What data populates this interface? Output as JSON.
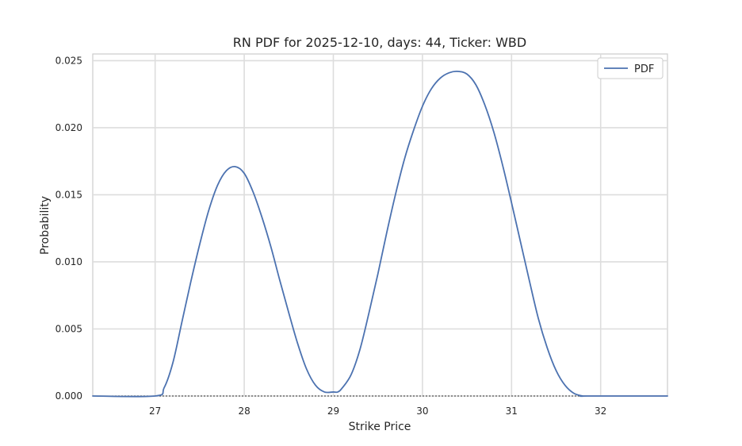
{
  "chart_data": {
    "type": "line",
    "title": "RN PDF for 2025-12-10, days: 44, Ticker: WBD",
    "xlabel": "Strike Price",
    "ylabel": "Probability",
    "xlim": [
      26.3,
      32.75
    ],
    "ylim": [
      0.0,
      0.0255
    ],
    "x_ticks": [
      27,
      28,
      29,
      30,
      31,
      32
    ],
    "x_tick_labels": [
      "27",
      "28",
      "29",
      "30",
      "31",
      "32"
    ],
    "y_ticks": [
      0.0,
      0.005,
      0.01,
      0.015,
      0.02,
      0.025
    ],
    "y_tick_labels": [
      "0.000",
      "0.005",
      "0.010",
      "0.015",
      "0.020",
      "0.025"
    ],
    "grid": true,
    "legend": {
      "position": "top-right",
      "entries": [
        "PDF"
      ]
    },
    "baseline": {
      "y": 0.0,
      "style": "dotted",
      "color": "#333333"
    },
    "series": [
      {
        "name": "PDF",
        "color": "#4c72b0",
        "x": [
          26.3,
          27.0,
          27.1,
          27.2,
          27.3,
          27.4,
          27.5,
          27.6,
          27.7,
          27.8,
          27.9,
          28.0,
          28.1,
          28.2,
          28.3,
          28.4,
          28.5,
          28.6,
          28.7,
          28.8,
          28.9,
          29.0,
          29.05,
          29.1,
          29.2,
          29.3,
          29.4,
          29.5,
          29.6,
          29.7,
          29.8,
          29.9,
          30.0,
          30.1,
          30.2,
          30.3,
          30.4,
          30.5,
          30.6,
          30.7,
          30.8,
          30.9,
          31.0,
          31.1,
          31.2,
          31.3,
          31.4,
          31.5,
          31.6,
          31.7,
          31.8,
          31.85,
          32.75
        ],
        "y": [
          0.0,
          0.0,
          0.0006,
          0.0025,
          0.0055,
          0.0085,
          0.0113,
          0.0138,
          0.0157,
          0.0168,
          0.0171,
          0.0166,
          0.0152,
          0.0133,
          0.0111,
          0.0086,
          0.0062,
          0.0039,
          0.002,
          0.0008,
          0.0003,
          0.0003,
          0.0003,
          0.0006,
          0.0016,
          0.0035,
          0.0062,
          0.0091,
          0.0122,
          0.0151,
          0.0177,
          0.0198,
          0.0216,
          0.0229,
          0.0237,
          0.0241,
          0.0242,
          0.024,
          0.0232,
          0.0217,
          0.0197,
          0.0172,
          0.0144,
          0.0115,
          0.0086,
          0.0058,
          0.0036,
          0.0019,
          0.0008,
          0.0002,
          0.0,
          0.0,
          0.0
        ]
      }
    ]
  }
}
